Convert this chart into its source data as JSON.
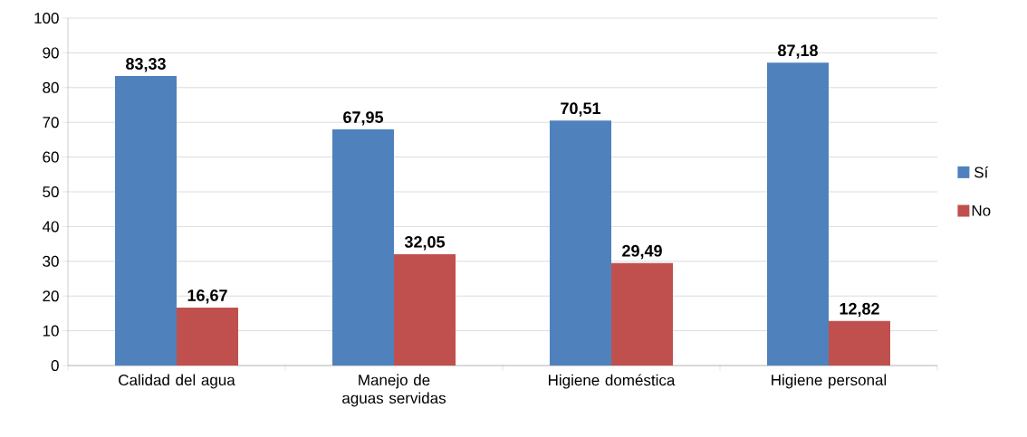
{
  "chart_data": {
    "type": "bar",
    "categories": [
      "Calidad del agua",
      "Manejo de aguas servidas",
      "Higiene doméstica",
      "Higiene personal"
    ],
    "series": [
      {
        "name": "Sí",
        "color": "#4f81bd",
        "values": [
          83.33,
          67.95,
          70.51,
          87.18
        ],
        "value_labels": [
          "83,33",
          "67,95",
          "70,51",
          "87,18"
        ]
      },
      {
        "name": "No",
        "color": "#c0504d",
        "values": [
          16.67,
          32.05,
          29.49,
          12.82
        ],
        "value_labels": [
          "16,67",
          "32,05",
          "29,49",
          "12,82"
        ]
      }
    ],
    "ylim": [
      0,
      100
    ],
    "yticks": [
      0,
      10,
      20,
      30,
      40,
      50,
      60,
      70,
      80,
      90,
      100
    ],
    "grid": "y",
    "legend": "right"
  }
}
